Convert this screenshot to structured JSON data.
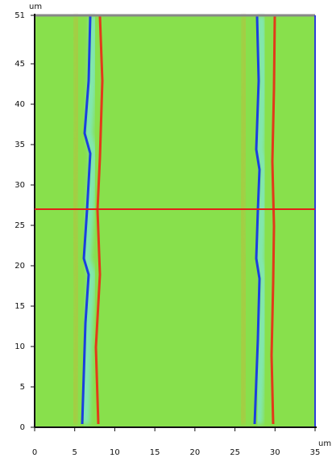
{
  "chart_data": {
    "type": "image",
    "x_unit": "um",
    "y_unit": "um",
    "xlim": [
      0,
      35
    ],
    "ylim": [
      0,
      51
    ],
    "xticks": [
      0,
      5,
      10,
      15,
      20,
      25,
      30,
      35
    ],
    "yticks": [
      0,
      5,
      10,
      15,
      20,
      25,
      30,
      35,
      40,
      45,
      51
    ],
    "cursor_y": 27,
    "cursor_color": "#e0201a",
    "background": "#88e04c"
  }
}
